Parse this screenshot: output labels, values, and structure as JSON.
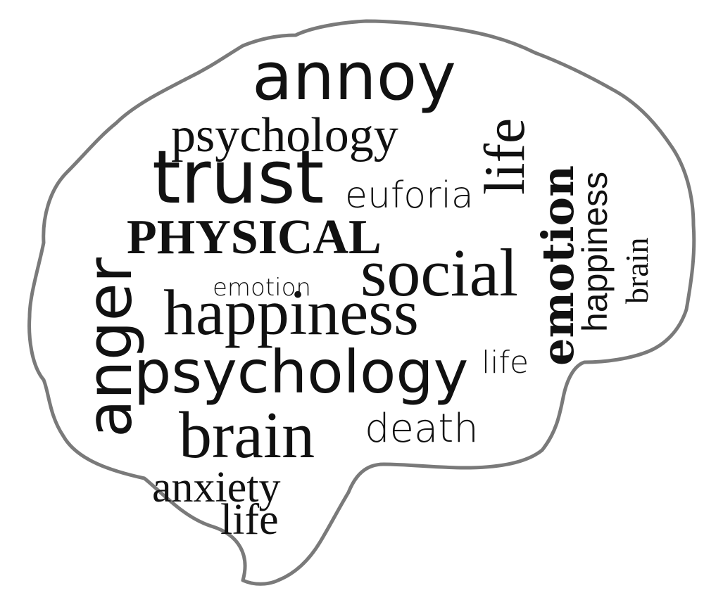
{
  "cloud": {
    "words": [
      "annoy",
      "psychology",
      "trust",
      "euforia",
      "life",
      "emotion",
      "happiness",
      "brain",
      "PHYSICAL",
      "anger",
      "social",
      "emotion",
      "happiness",
      "psychology",
      "life",
      "brain",
      "death",
      "anxiety",
      "life"
    ]
  },
  "colors": {
    "text": "#111111",
    "outline": "#7a7a7a",
    "background": "#ffffff"
  }
}
